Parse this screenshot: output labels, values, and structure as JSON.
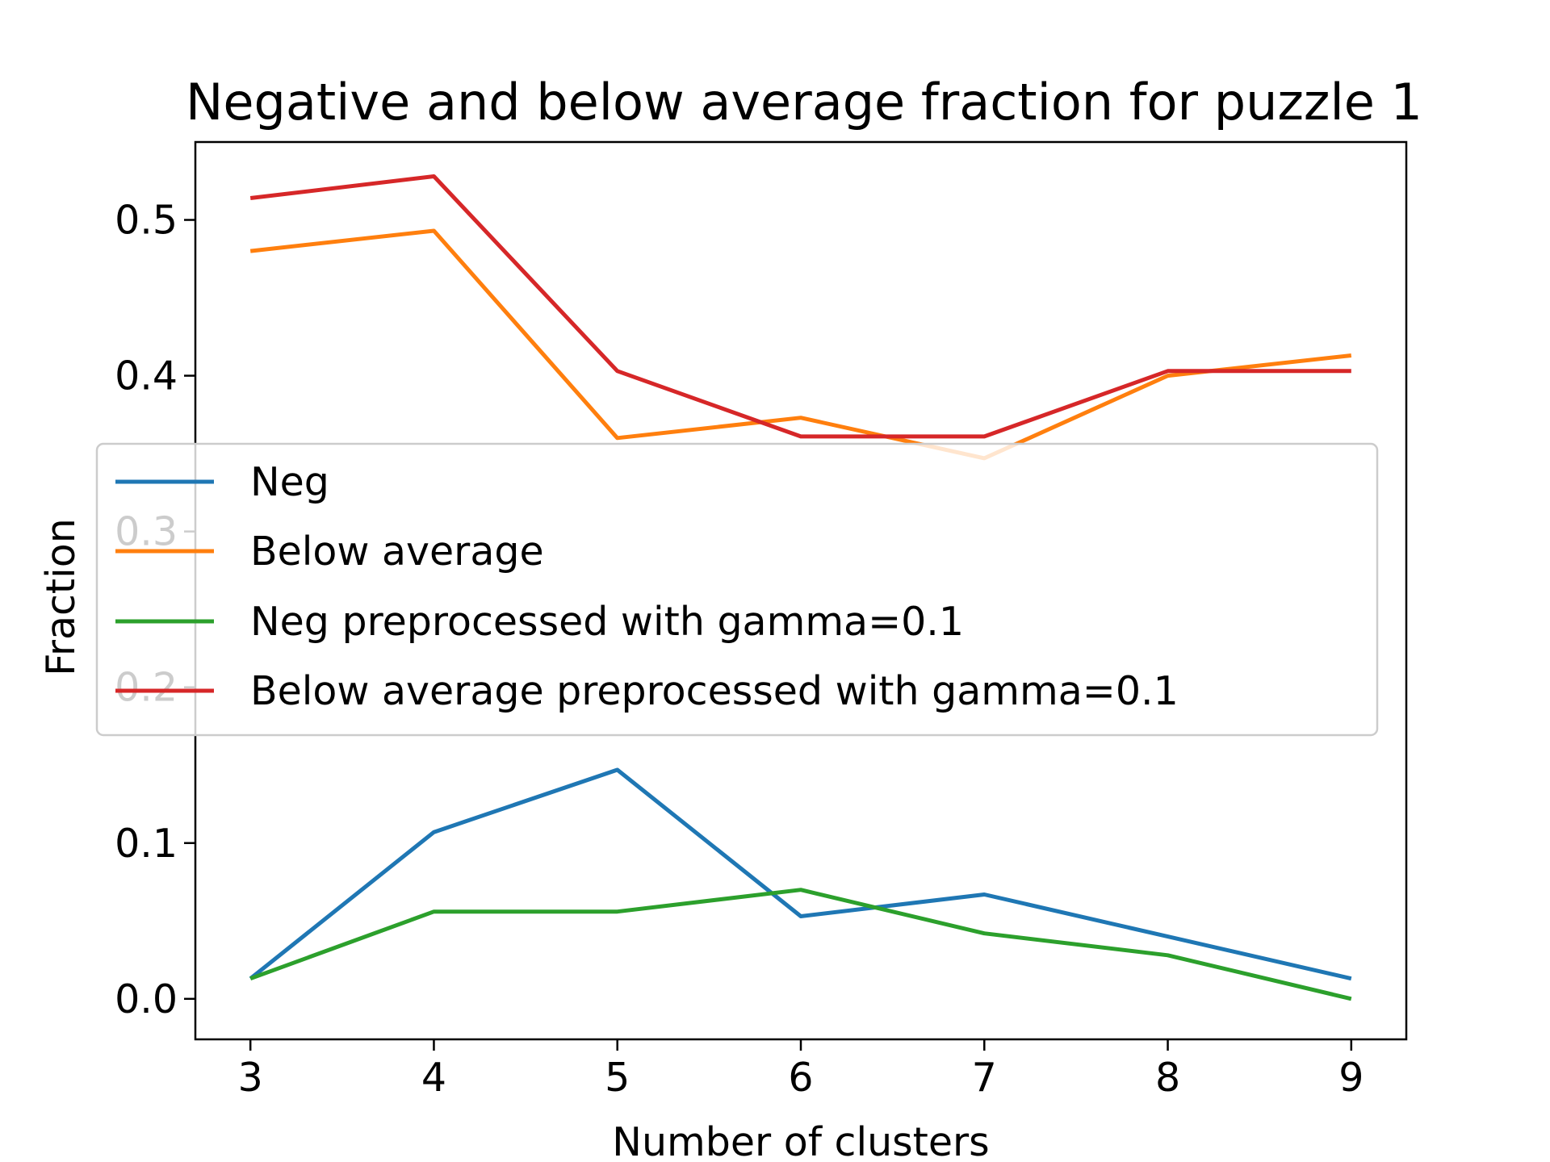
{
  "chart_data": {
    "type": "line",
    "title": "Negative and below average fraction for puzzle 1",
    "xlabel": "Number of clusters",
    "ylabel": "Fraction",
    "x": [
      3,
      4,
      5,
      6,
      7,
      8,
      9
    ],
    "xlim": [
      2.7,
      9.3
    ],
    "ylim": [
      -0.026,
      0.55
    ],
    "xticks": [
      3,
      4,
      5,
      6,
      7,
      8,
      9
    ],
    "yticks": [
      0.0,
      0.1,
      0.2,
      0.3,
      0.4,
      0.5
    ],
    "ytick_labels": [
      "0.0",
      "0.1",
      "0.2",
      "0.3",
      "0.4",
      "0.5"
    ],
    "grid": false,
    "legend_position": "center",
    "series": [
      {
        "name": "Neg",
        "color": "#1f77b4",
        "values": [
          0.013,
          0.107,
          0.147,
          0.053,
          0.067,
          0.04,
          0.013
        ]
      },
      {
        "name": "Below average",
        "color": "#ff7f0e",
        "values": [
          0.48,
          0.493,
          0.36,
          0.373,
          0.347,
          0.4,
          0.413
        ]
      },
      {
        "name": "Neg preprocessed with gamma=0.1",
        "color": "#2ca02c",
        "values": [
          0.013,
          0.056,
          0.056,
          0.07,
          0.042,
          0.028,
          0.0
        ]
      },
      {
        "name": "Below average preprocessed with gamma=0.1",
        "color": "#d62728",
        "values": [
          0.514,
          0.528,
          0.403,
          0.361,
          0.361,
          0.403,
          0.403
        ]
      }
    ]
  }
}
